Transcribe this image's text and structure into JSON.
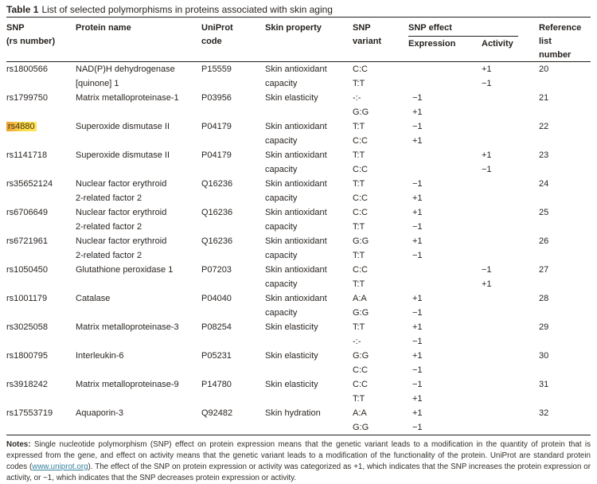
{
  "title": {
    "label": "Table 1",
    "text": "List of selected polymorphisms in proteins associated with skin aging"
  },
  "header": {
    "col_snp": [
      "SNP",
      "(rs number)"
    ],
    "col_protein": "Protein name",
    "col_uniprot": [
      "UniProt",
      "code"
    ],
    "col_property": "Skin property",
    "col_variant": [
      "SNP",
      "variant"
    ],
    "col_effect": "SNP effect",
    "col_expression": "Expression",
    "col_activity": "Activity",
    "col_reference": [
      "Reference",
      "list",
      "number"
    ]
  },
  "table": {
    "rows": [
      {
        "snp": "rs1800566",
        "highlight": false,
        "protein": [
          "NAD(P)H dehydrogenase",
          "[quinone] 1"
        ],
        "uniprot": "P15559",
        "property": [
          "Skin antioxidant",
          "capacity"
        ],
        "variants": [
          "C:C",
          "T:T"
        ],
        "expression": [
          "",
          ""
        ],
        "activity": [
          "+1",
          "−1"
        ],
        "ref": "20"
      },
      {
        "snp": "rs1799750",
        "highlight": false,
        "protein": [
          "Matrix metalloproteinase-1"
        ],
        "uniprot": "P03956",
        "property": [
          "Skin elasticity"
        ],
        "variants": [
          "-:-",
          "G:G"
        ],
        "expression": [
          "−1",
          "+1"
        ],
        "activity": [
          "",
          ""
        ],
        "ref": "21"
      },
      {
        "snp": "rs4880",
        "highlight": true,
        "protein": [
          "Superoxide dismutase II"
        ],
        "uniprot": "P04179",
        "property": [
          "Skin antioxidant",
          "capacity"
        ],
        "variants": [
          "T:T",
          "C:C"
        ],
        "expression": [
          "−1",
          "+1"
        ],
        "activity": [
          "",
          ""
        ],
        "ref": "22"
      },
      {
        "snp": "rs1141718",
        "highlight": false,
        "protein": [
          "Superoxide dismutase II"
        ],
        "uniprot": "P04179",
        "property": [
          "Skin antioxidant",
          "capacity"
        ],
        "variants": [
          "T:T",
          "C:C"
        ],
        "expression": [
          "",
          ""
        ],
        "activity": [
          "+1",
          "−1"
        ],
        "ref": "23"
      },
      {
        "snp": "rs35652124",
        "highlight": false,
        "protein": [
          "Nuclear factor erythroid",
          "2-related factor 2"
        ],
        "uniprot": "Q16236",
        "property": [
          "Skin antioxidant",
          "capacity"
        ],
        "variants": [
          "T:T",
          "C:C"
        ],
        "expression": [
          "−1",
          "+1"
        ],
        "activity": [
          "",
          ""
        ],
        "ref": "24"
      },
      {
        "snp": "rs6706649",
        "highlight": false,
        "protein": [
          "Nuclear factor erythroid",
          "2-related factor 2"
        ],
        "uniprot": "Q16236",
        "property": [
          "Skin antioxidant",
          "capacity"
        ],
        "variants": [
          "C:C",
          "T:T"
        ],
        "expression": [
          "+1",
          "−1"
        ],
        "activity": [
          "",
          ""
        ],
        "ref": "25"
      },
      {
        "snp": "rs6721961",
        "highlight": false,
        "protein": [
          "Nuclear factor erythroid",
          "2-related factor 2"
        ],
        "uniprot": "Q16236",
        "property": [
          "Skin antioxidant",
          "capacity"
        ],
        "variants": [
          "G:G",
          "T:T"
        ],
        "expression": [
          "+1",
          "−1"
        ],
        "activity": [
          "",
          ""
        ],
        "ref": "26"
      },
      {
        "snp": "rs1050450",
        "highlight": false,
        "protein": [
          "Glutathione peroxidase 1"
        ],
        "uniprot": "P07203",
        "property": [
          "Skin antioxidant",
          "capacity"
        ],
        "variants": [
          "C:C",
          "T:T"
        ],
        "expression": [
          "",
          ""
        ],
        "activity": [
          "−1",
          "+1"
        ],
        "ref": "27"
      },
      {
        "snp": "rs1001179",
        "highlight": false,
        "protein": [
          "Catalase"
        ],
        "uniprot": "P04040",
        "property": [
          "Skin antioxidant",
          "capacity"
        ],
        "variants": [
          "A:A",
          "G:G"
        ],
        "expression": [
          "+1",
          "−1"
        ],
        "activity": [
          "",
          ""
        ],
        "ref": "28"
      },
      {
        "snp": "rs3025058",
        "highlight": false,
        "protein": [
          "Matrix metalloproteinase-3"
        ],
        "uniprot": "P08254",
        "property": [
          "Skin elasticity"
        ],
        "variants": [
          "T:T",
          "-:-"
        ],
        "expression": [
          "+1",
          "−1"
        ],
        "activity": [
          "",
          ""
        ],
        "ref": "29"
      },
      {
        "snp": "rs1800795",
        "highlight": false,
        "protein": [
          "Interleukin-6"
        ],
        "uniprot": "P05231",
        "property": [
          "Skin elasticity"
        ],
        "variants": [
          "G:G",
          "C:C"
        ],
        "expression": [
          "+1",
          "−1"
        ],
        "activity": [
          "",
          ""
        ],
        "ref": "30"
      },
      {
        "snp": "rs3918242",
        "highlight": false,
        "protein": [
          "Matrix metalloproteinase-9"
        ],
        "uniprot": "P14780",
        "property": [
          "Skin elasticity"
        ],
        "variants": [
          "C:C",
          "T:T"
        ],
        "expression": [
          "−1",
          "+1"
        ],
        "activity": [
          "",
          ""
        ],
        "ref": "31"
      },
      {
        "snp": "rs17553719",
        "highlight": false,
        "protein": [
          "Aquaporin-3"
        ],
        "uniprot": "Q92482",
        "property": [
          "Skin hydration"
        ],
        "variants": [
          "A:A",
          "G:G"
        ],
        "expression": [
          "+1",
          "−1"
        ],
        "activity": [
          "",
          ""
        ],
        "ref": "32"
      }
    ]
  },
  "notes": {
    "label": "Notes:",
    "text_before_link": "Single nucleotide polymorphism (SNP) effect on protein expression means that the genetic variant leads to a modification in the quantity of protein that is expressed from the gene, and effect on activity means that the genetic variant leads to a modification of the functionality of the protein. UniProt are standard protein codes (",
    "link": "www.uniprot.org",
    "text_after_link": "). The effect of the SNP on protein expression or activity was categorized as +1, which indicates that the SNP increases the protein expression or activity, or −1, which indicates that the SNP decreases protein expression or activity."
  },
  "colors": {
    "highlight_left": "#ec9f35",
    "highlight_right": "#ffe459",
    "link": "#35809d",
    "text": "#2a2521",
    "rule": "#231f1c"
  }
}
